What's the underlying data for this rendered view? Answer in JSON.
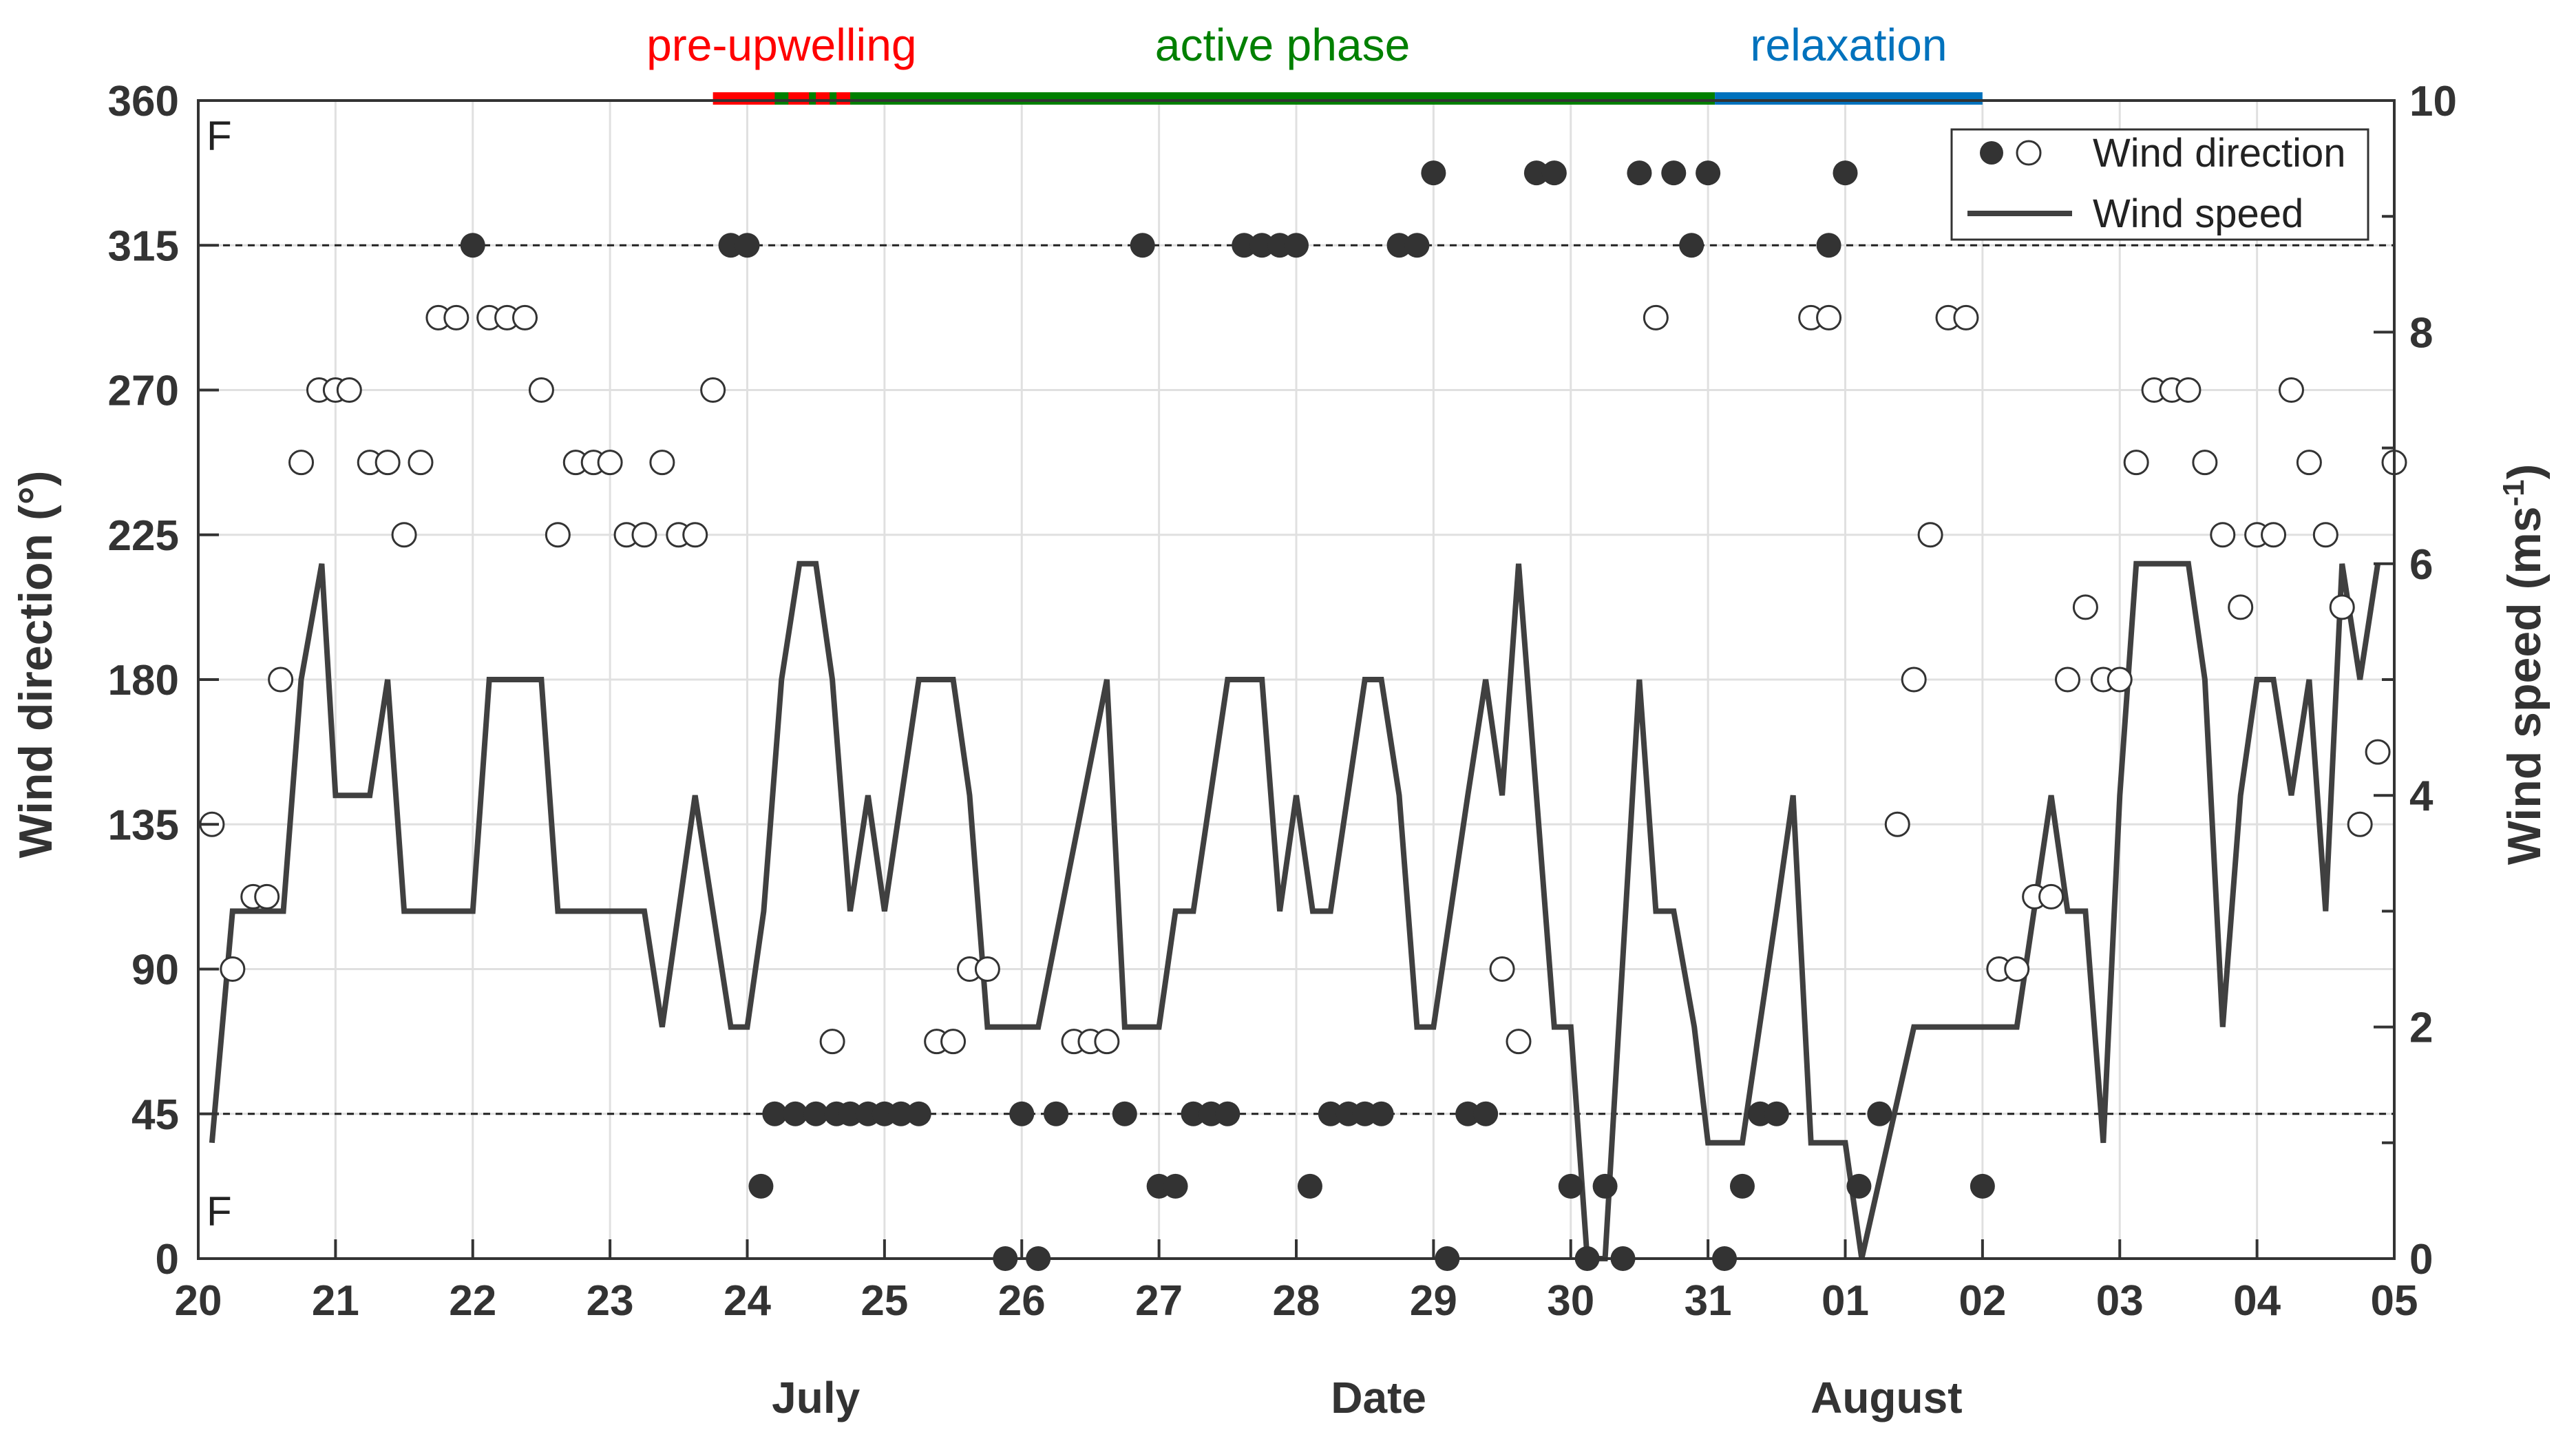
{
  "chart_data": {
    "type": "scatter+line",
    "panel_letter": "F",
    "x_axis": {
      "range": [
        20,
        36
      ],
      "tick_labels": [
        "20",
        "21",
        "22",
        "23",
        "24",
        "25",
        "26",
        "27",
        "28",
        "29",
        "30",
        "31",
        "01",
        "02",
        "03",
        "04",
        "05"
      ],
      "month_labels": [
        {
          "label": "July",
          "x": 24.5
        },
        {
          "label": "Date",
          "x": 28.6
        },
        {
          "label": "August",
          "x": 32.3
        }
      ],
      "label": "Date"
    },
    "y_left": {
      "label": "Wind direction (°)",
      "range": [
        0,
        360
      ],
      "ticks": [
        0,
        45,
        90,
        135,
        180,
        225,
        270,
        315,
        360
      ]
    },
    "y_right": {
      "label": "Wind speed (ms⁻¹)",
      "label_main": "Wind speed (ms",
      "label_sup": "-1",
      "label_close": ")",
      "range": [
        0,
        10
      ],
      "ticks": [
        0,
        2,
        4,
        6,
        8,
        10
      ]
    },
    "reference_lines": [
      45,
      315
    ],
    "phases": [
      {
        "name": "pre-upwelling",
        "color": "#ff0000",
        "start": 23.75,
        "end": 24.75
      },
      {
        "name": "active phase",
        "color": "#008000",
        "start": 24.75,
        "end": 31.05
      },
      {
        "name": "relaxation",
        "color": "#0072bd",
        "start": 31.05,
        "end": 33.0
      }
    ],
    "phase_gaps_green": [
      [
        24.2,
        24.3
      ],
      [
        24.45,
        24.5
      ],
      [
        24.6,
        24.65
      ]
    ],
    "legend": {
      "direction": "Wind direction",
      "speed": "Wind speed"
    },
    "series": [
      {
        "name": "Wind direction (open)",
        "axis": "left",
        "points": [
          [
            20.1,
            135
          ],
          [
            20.25,
            90
          ],
          [
            20.4,
            112.5
          ],
          [
            20.5,
            112.5
          ],
          [
            20.6,
            180
          ],
          [
            20.75,
            247.5
          ],
          [
            20.88,
            270
          ],
          [
            21.0,
            270
          ],
          [
            21.1,
            270
          ],
          [
            21.25,
            247.5
          ],
          [
            21.38,
            247.5
          ],
          [
            21.5,
            225
          ],
          [
            21.62,
            247.5
          ],
          [
            21.75,
            292.5
          ],
          [
            21.88,
            292.5
          ],
          [
            22.12,
            292.5
          ],
          [
            22.25,
            292.5
          ],
          [
            22.38,
            292.5
          ],
          [
            22.5,
            270
          ],
          [
            22.62,
            225
          ],
          [
            22.75,
            247.5
          ],
          [
            22.88,
            247.5
          ],
          [
            23.0,
            247.5
          ],
          [
            23.12,
            225
          ],
          [
            23.25,
            225
          ],
          [
            23.38,
            247.5
          ],
          [
            23.5,
            225
          ],
          [
            23.62,
            225
          ],
          [
            23.75,
            270
          ],
          [
            24.62,
            67.5
          ],
          [
            25.38,
            67.5
          ],
          [
            25.5,
            67.5
          ],
          [
            25.62,
            90
          ],
          [
            25.75,
            90
          ],
          [
            26.38,
            67.5
          ],
          [
            26.5,
            67.5
          ],
          [
            26.62,
            67.5
          ],
          [
            29.5,
            90
          ],
          [
            29.62,
            67.5
          ],
          [
            30.62,
            292.5
          ],
          [
            31.75,
            292.5
          ],
          [
            31.88,
            292.5
          ],
          [
            32.38,
            135
          ],
          [
            32.5,
            180
          ],
          [
            32.62,
            225
          ],
          [
            32.75,
            292.5
          ],
          [
            32.88,
            292.5
          ],
          [
            33.12,
            90
          ],
          [
            33.25,
            90
          ],
          [
            33.38,
            112.5
          ],
          [
            33.5,
            112.5
          ],
          [
            33.62,
            180
          ],
          [
            33.75,
            202.5
          ],
          [
            33.88,
            180
          ],
          [
            34.0,
            180
          ],
          [
            34.12,
            247.5
          ],
          [
            34.25,
            270
          ],
          [
            34.38,
            270
          ],
          [
            34.5,
            270
          ],
          [
            34.62,
            247.5
          ],
          [
            34.75,
            225
          ],
          [
            34.88,
            202.5
          ],
          [
            35.0,
            225
          ],
          [
            35.12,
            225
          ],
          [
            35.25,
            270
          ],
          [
            35.38,
            247.5
          ],
          [
            35.5,
            225
          ],
          [
            35.62,
            202.5
          ],
          [
            35.75,
            135
          ],
          [
            35.88,
            157.5
          ],
          [
            36.0,
            247.5
          ]
        ]
      },
      {
        "name": "Wind direction (filled)",
        "axis": "left",
        "points": [
          [
            22.0,
            315
          ],
          [
            23.88,
            315
          ],
          [
            24.0,
            315
          ],
          [
            24.1,
            22.5
          ],
          [
            24.2,
            45
          ],
          [
            24.35,
            45
          ],
          [
            24.5,
            45
          ],
          [
            24.65,
            45
          ],
          [
            24.75,
            45
          ],
          [
            24.88,
            45
          ],
          [
            25.0,
            45
          ],
          [
            25.12,
            45
          ],
          [
            25.25,
            45
          ],
          [
            25.88,
            0
          ],
          [
            26.0,
            45
          ],
          [
            26.12,
            0
          ],
          [
            26.25,
            45
          ],
          [
            26.75,
            45
          ],
          [
            26.88,
            315
          ],
          [
            27.0,
            22.5
          ],
          [
            27.12,
            22.5
          ],
          [
            27.25,
            45
          ],
          [
            27.38,
            45
          ],
          [
            27.5,
            45
          ],
          [
            27.62,
            315
          ],
          [
            27.75,
            315
          ],
          [
            27.88,
            315
          ],
          [
            28.0,
            315
          ],
          [
            28.1,
            22.5
          ],
          [
            28.25,
            45
          ],
          [
            28.38,
            45
          ],
          [
            28.5,
            45
          ],
          [
            28.62,
            45
          ],
          [
            28.75,
            315
          ],
          [
            28.88,
            315
          ],
          [
            29.0,
            337.5
          ],
          [
            29.1,
            0
          ],
          [
            29.25,
            45
          ],
          [
            29.38,
            45
          ],
          [
            29.75,
            337.5
          ],
          [
            29.88,
            337.5
          ],
          [
            30.0,
            22.5
          ],
          [
            30.12,
            0
          ],
          [
            30.25,
            22.5
          ],
          [
            30.38,
            0
          ],
          [
            30.5,
            337.5
          ],
          [
            30.75,
            337.5
          ],
          [
            30.88,
            315
          ],
          [
            31.0,
            337.5
          ],
          [
            31.12,
            0
          ],
          [
            31.25,
            22.5
          ],
          [
            31.38,
            45
          ],
          [
            31.5,
            45
          ],
          [
            31.88,
            315
          ],
          [
            32.0,
            337.5
          ],
          [
            32.1,
            22.5
          ],
          [
            32.25,
            45
          ],
          [
            33.0,
            22.5
          ]
        ]
      },
      {
        "name": "Wind speed",
        "axis": "right",
        "points": [
          [
            20.1,
            1
          ],
          [
            20.25,
            3
          ],
          [
            20.5,
            3
          ],
          [
            20.62,
            3
          ],
          [
            20.75,
            5
          ],
          [
            20.9,
            6
          ],
          [
            21.0,
            4
          ],
          [
            21.25,
            4
          ],
          [
            21.38,
            5
          ],
          [
            21.5,
            3
          ],
          [
            21.75,
            3
          ],
          [
            22.0,
            3
          ],
          [
            22.12,
            5
          ],
          [
            22.5,
            5
          ],
          [
            22.62,
            3
          ],
          [
            23.25,
            3
          ],
          [
            23.38,
            2
          ],
          [
            23.62,
            4
          ],
          [
            23.88,
            2
          ],
          [
            24.0,
            2
          ],
          [
            24.12,
            3
          ],
          [
            24.25,
            5
          ],
          [
            24.38,
            6
          ],
          [
            24.5,
            6
          ],
          [
            24.62,
            5
          ],
          [
            24.75,
            3
          ],
          [
            24.88,
            4
          ],
          [
            25.0,
            3
          ],
          [
            25.25,
            5
          ],
          [
            25.5,
            5
          ],
          [
            25.62,
            4
          ],
          [
            25.75,
            2
          ],
          [
            26.12,
            2
          ],
          [
            26.62,
            5
          ],
          [
            26.75,
            2
          ],
          [
            27.0,
            2
          ],
          [
            27.12,
            3
          ],
          [
            27.25,
            3
          ],
          [
            27.5,
            5
          ],
          [
            27.75,
            5
          ],
          [
            27.88,
            3
          ],
          [
            28.0,
            4
          ],
          [
            28.12,
            3
          ],
          [
            28.25,
            3
          ],
          [
            28.5,
            5
          ],
          [
            28.62,
            5
          ],
          [
            28.75,
            4
          ],
          [
            28.88,
            2
          ],
          [
            29.0,
            2
          ],
          [
            29.25,
            4
          ],
          [
            29.38,
            5
          ],
          [
            29.5,
            4
          ],
          [
            29.62,
            6
          ],
          [
            29.75,
            4
          ],
          [
            29.88,
            2
          ],
          [
            30.0,
            2
          ],
          [
            30.12,
            0
          ],
          [
            30.25,
            0
          ],
          [
            30.5,
            5
          ],
          [
            30.62,
            3
          ],
          [
            30.75,
            3
          ],
          [
            30.9,
            2
          ],
          [
            31.0,
            1
          ],
          [
            31.25,
            1
          ],
          [
            31.5,
            3
          ],
          [
            31.62,
            4
          ],
          [
            31.75,
            1
          ],
          [
            32.0,
            1
          ],
          [
            32.12,
            0
          ],
          [
            32.5,
            2
          ],
          [
            32.75,
            2
          ],
          [
            33.0,
            2
          ],
          [
            33.25,
            2
          ],
          [
            33.5,
            4
          ],
          [
            33.62,
            3
          ],
          [
            33.75,
            3
          ],
          [
            33.88,
            1
          ],
          [
            34.0,
            4
          ],
          [
            34.12,
            6
          ],
          [
            34.5,
            6
          ],
          [
            34.62,
            5
          ],
          [
            34.75,
            2
          ],
          [
            34.88,
            4
          ],
          [
            35.0,
            5
          ],
          [
            35.12,
            5
          ],
          [
            35.25,
            4
          ],
          [
            35.38,
            5
          ],
          [
            35.5,
            3
          ],
          [
            35.62,
            6
          ],
          [
            35.75,
            5
          ],
          [
            35.88,
            6
          ]
        ]
      }
    ]
  }
}
